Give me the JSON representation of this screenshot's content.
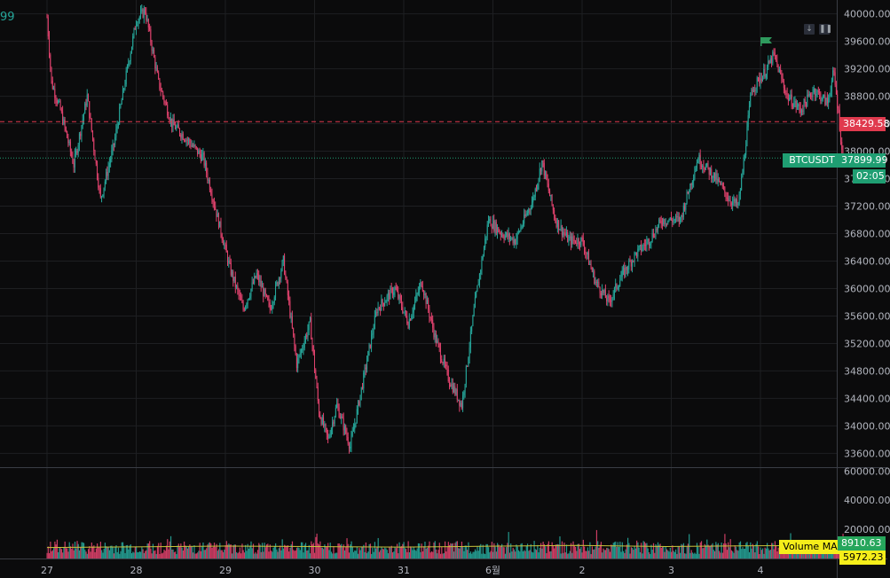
{
  "symbol": "BTCUSDT",
  "corner_value": "99",
  "chart_data": {
    "type": "candlestick",
    "price_axis_ticks": [
      "40000.00",
      "39600.00",
      "39200.00",
      "38800.00",
      "38400.00",
      "38000.00",
      "37600.00",
      "37200.00",
      "36800.00",
      "36400.00",
      "36000.00",
      "35600.00",
      "35200.00",
      "34800.00",
      "34400.00",
      "34000.00",
      "33600.00"
    ],
    "volume_axis_ticks": [
      "60000.00",
      "40000.00",
      "20000.00"
    ],
    "x_tick_labels": [
      "27",
      "28",
      "29",
      "30",
      "31",
      "6월",
      "2",
      "3",
      "4"
    ],
    "price_range": [
      33450,
      40150
    ],
    "volume_range": [
      0,
      62000
    ],
    "close_path": [
      [
        0,
        39950
      ],
      [
        0.05,
        39000
      ],
      [
        0.15,
        38600
      ],
      [
        0.3,
        37800
      ],
      [
        0.45,
        38800
      ],
      [
        0.6,
        37300
      ],
      [
        0.75,
        38100
      ],
      [
        0.9,
        39200
      ],
      [
        1.0,
        39900
      ],
      [
        1.1,
        40050
      ],
      [
        1.25,
        39000
      ],
      [
        1.4,
        38400
      ],
      [
        1.55,
        38200
      ],
      [
        1.75,
        37900
      ],
      [
        1.9,
        37100
      ],
      [
        2.05,
        36300
      ],
      [
        2.2,
        35700
      ],
      [
        2.35,
        36200
      ],
      [
        2.5,
        35700
      ],
      [
        2.65,
        36400
      ],
      [
        2.8,
        34900
      ],
      [
        2.95,
        35500
      ],
      [
        3.05,
        34200
      ],
      [
        3.15,
        33800
      ],
      [
        3.25,
        34300
      ],
      [
        3.4,
        33700
      ],
      [
        3.55,
        34700
      ],
      [
        3.7,
        35700
      ],
      [
        3.9,
        36000
      ],
      [
        4.05,
        35500
      ],
      [
        4.2,
        36100
      ],
      [
        4.35,
        35300
      ],
      [
        4.5,
        34700
      ],
      [
        4.65,
        34300
      ],
      [
        4.8,
        35800
      ],
      [
        4.95,
        37000
      ],
      [
        5.1,
        36800
      ],
      [
        5.25,
        36700
      ],
      [
        5.45,
        37300
      ],
      [
        5.55,
        37850
      ],
      [
        5.7,
        37000
      ],
      [
        5.85,
        36700
      ],
      [
        6.0,
        36700
      ],
      [
        6.15,
        36100
      ],
      [
        6.3,
        35800
      ],
      [
        6.45,
        36200
      ],
      [
        6.6,
        36500
      ],
      [
        6.75,
        36700
      ],
      [
        6.9,
        37000
      ],
      [
        7.1,
        37000
      ],
      [
        7.3,
        37900
      ],
      [
        7.5,
        37600
      ],
      [
        7.65,
        37300
      ],
      [
        7.75,
        37200
      ],
      [
        7.8,
        37700
      ],
      [
        7.9,
        38900
      ],
      [
        8.05,
        39150
      ],
      [
        8.15,
        39400
      ],
      [
        8.3,
        38800
      ],
      [
        8.45,
        38600
      ],
      [
        8.6,
        38900
      ],
      [
        8.75,
        38700
      ],
      [
        8.82,
        39150
      ],
      [
        8.88,
        38500
      ],
      [
        8.93,
        37750
      ]
    ],
    "volume_ma": [
      7500,
      8000,
      8500,
      8200,
      7800,
      8400,
      9000,
      8200,
      8700,
      8910.63
    ],
    "last_volume": 17000,
    "horizontal_lines": [
      {
        "label": "38429.58",
        "price": 38429.58,
        "color": "#e03a4e",
        "style": "dashed"
      },
      {
        "label": "37899.99",
        "price": 37899.99,
        "color": "#1f9e72",
        "style": "dotted"
      }
    ],
    "volume_ma_label": "Volume MA",
    "volume_ma_value": "8910.63",
    "volume_ma_value2": "5972.23",
    "countdown": "02:05"
  },
  "colors": {
    "background": "#0b0b0c",
    "up": "#26a69a",
    "down": "#e0426d",
    "grid": "#1e1f22",
    "ma_line": "#c8c23a"
  }
}
